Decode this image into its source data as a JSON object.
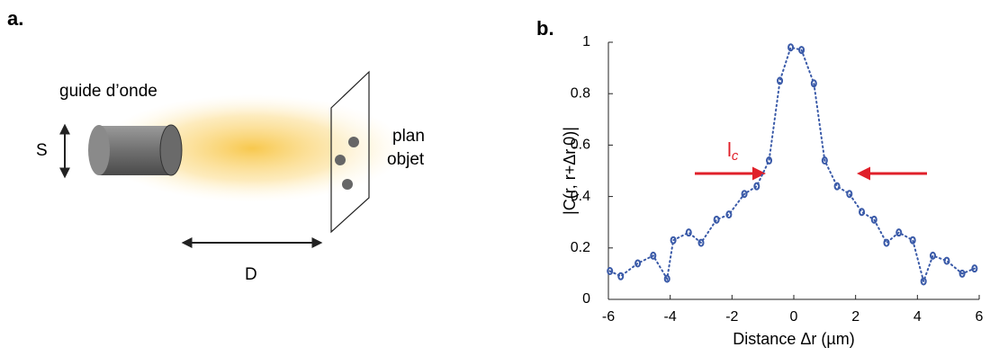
{
  "panel_a": {
    "label": "a.",
    "waveguide": "guide d’onde",
    "s": "S",
    "d": "D",
    "plane": [
      "plan",
      "objet"
    ]
  },
  "chart_data": {
    "type": "scatter",
    "label": "b.",
    "xlabel": "Distance Δr (µm)",
    "ylabel": "|C(r, r+Δr,0)|",
    "annotation": {
      "main": "l",
      "sub": "c"
    },
    "xlim": [
      -6,
      6
    ],
    "xticks": [
      -6,
      -4,
      -2,
      0,
      2,
      4,
      6
    ],
    "ylim": [
      0,
      1
    ],
    "yticks": [
      0,
      0.2,
      0.4,
      0.6,
      0.8,
      1
    ],
    "series": [
      {
        "color": "#3a5aa8",
        "x": [
          -5.95,
          -5.6,
          -5.05,
          -4.55,
          -4.1,
          -3.9,
          -3.4,
          -3.0,
          -2.5,
          -2.1,
          -1.6,
          -1.2,
          -0.8,
          -0.45,
          -0.1,
          0.25,
          0.65,
          1.0,
          1.4,
          1.8,
          2.2,
          2.6,
          3.0,
          3.4,
          3.85,
          4.2,
          4.5,
          4.95,
          5.45,
          5.85
        ],
        "values": [
          0.11,
          0.09,
          0.14,
          0.17,
          0.08,
          0.23,
          0.26,
          0.22,
          0.31,
          0.33,
          0.41,
          0.44,
          0.54,
          0.85,
          0.98,
          0.97,
          0.84,
          0.54,
          0.44,
          0.41,
          0.34,
          0.31,
          0.22,
          0.26,
          0.23,
          0.07,
          0.17,
          0.15,
          0.1,
          0.12
        ]
      }
    ]
  }
}
